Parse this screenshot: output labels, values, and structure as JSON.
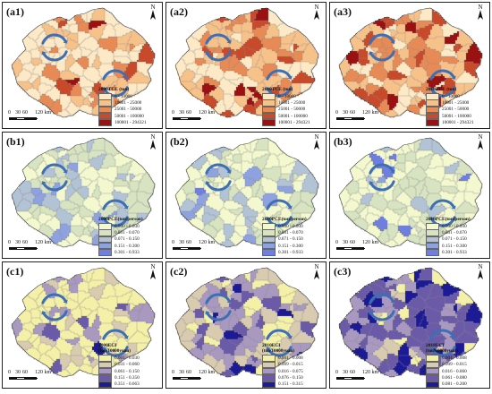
{
  "north_letter": "N",
  "scale": {
    "ticks": [
      "0",
      "30",
      "60",
      "120 km"
    ]
  },
  "panels": [
    {
      "label": "(a1)",
      "row": 0,
      "col": 0,
      "legend": {
        "title": "2000TCE (ton)",
        "subtitle": "",
        "items": [
          "0 - 10000",
          "10001 - 25000",
          "25001 - 50000",
          "50001 - 100000",
          "100001 - 294321"
        ],
        "colors": [
          "#fde9c6",
          "#f7c28a",
          "#e88a55",
          "#c94a2a",
          "#9b1111"
        ]
      },
      "level_weights": [
        0.54,
        0.28,
        0.12,
        0.05,
        0.01
      ]
    },
    {
      "label": "(a2)",
      "row": 0,
      "col": 1,
      "legend": {
        "title": "2010TCE (ton)",
        "subtitle": "",
        "items": [
          "0 - 10000",
          "10001 - 25000",
          "25001 - 50000",
          "50001 - 100000",
          "100001 - 294321"
        ],
        "colors": [
          "#fde9c6",
          "#f7c28a",
          "#e88a55",
          "#c94a2a",
          "#9b1111"
        ]
      },
      "level_weights": [
        0.3,
        0.3,
        0.22,
        0.13,
        0.05
      ]
    },
    {
      "label": "(a3)",
      "row": 0,
      "col": 2,
      "legend": {
        "title": "2018TCE (ton)",
        "subtitle": "",
        "items": [
          "0 - 10000",
          "10001 - 25000",
          "25001 - 50000",
          "50001 - 100000",
          "100001 - 294321"
        ],
        "colors": [
          "#fde9c6",
          "#f7c28a",
          "#e88a55",
          "#c94a2a",
          "#9b1111"
        ]
      },
      "level_weights": [
        0.22,
        0.3,
        0.25,
        0.16,
        0.07
      ]
    },
    {
      "label": "(b1)",
      "row": 1,
      "col": 0,
      "legend": {
        "title": "2000PCE(ton/person)",
        "subtitle": "",
        "items": [
          "0.000 - 0.030",
          "0.031 - 0.070",
          "0.071 - 0.150",
          "0.151 - 0.300",
          "0.301 - 0.933"
        ],
        "colors": [
          "#f4f8cf",
          "#d7e3c1",
          "#b3c3d6",
          "#8ea2e0",
          "#6f7fe0"
        ]
      },
      "level_weights": [
        0.3,
        0.42,
        0.2,
        0.07,
        0.01
      ]
    },
    {
      "label": "(b2)",
      "row": 1,
      "col": 1,
      "legend": {
        "title": "2010PCE(ton/person)",
        "subtitle": "",
        "items": [
          "0.000 - 0.030",
          "0.031 - 0.070",
          "0.071 - 0.150",
          "0.151 - 0.300",
          "0.301 - 0.933"
        ],
        "colors": [
          "#f4f8cf",
          "#d7e3c1",
          "#b3c3d6",
          "#8ea2e0",
          "#6f7fe0"
        ]
      },
      "level_weights": [
        0.48,
        0.32,
        0.13,
        0.06,
        0.01
      ]
    },
    {
      "label": "(b3)",
      "row": 1,
      "col": 2,
      "legend": {
        "title": "2018PCE(ton/person)",
        "subtitle": "",
        "items": [
          "0.000 - 0.030",
          "0.031 - 0.070",
          "0.071 - 0.150",
          "0.151 - 0.300",
          "0.301 - 0.933"
        ],
        "colors": [
          "#f4f8cf",
          "#d7e3c1",
          "#b3c3d6",
          "#8ea2e0",
          "#6f7fe0"
        ]
      },
      "level_weights": [
        0.56,
        0.28,
        0.1,
        0.05,
        0.01
      ]
    },
    {
      "label": "(c1)",
      "row": 2,
      "col": 0,
      "legend": {
        "title": "2000ECI",
        "subtitle": "(ton/10000yuan)",
        "items": [
          "0.001 - 0.030",
          "0.031 - 0.060",
          "0.061 - 0.150",
          "0.151 - 0.350",
          "0.351 - 0.663"
        ],
        "colors": [
          "#f4f0a8",
          "#d8cbb0",
          "#a998bf",
          "#6a5aa8",
          "#1c1a95"
        ]
      },
      "level_weights": [
        0.6,
        0.2,
        0.13,
        0.05,
        0.02
      ]
    },
    {
      "label": "(c2)",
      "row": 2,
      "col": 1,
      "legend": {
        "title": "2010ECI",
        "subtitle": "(ton/10000yuan)",
        "items": [
          "0.001 - 0.008",
          "0.009 - 0.015",
          "0.016 - 0.075",
          "0.076 - 0.150",
          "0.151 - 0.315"
        ],
        "colors": [
          "#f4f0a8",
          "#d8cbb0",
          "#a998bf",
          "#6a5aa8",
          "#1c1a95"
        ]
      },
      "level_weights": [
        0.18,
        0.3,
        0.36,
        0.13,
        0.03
      ]
    },
    {
      "label": "(c3)",
      "row": 2,
      "col": 2,
      "legend": {
        "title": "2018ECI",
        "subtitle": "(ton/10000yuan)",
        "items": [
          "0.001 - 0.008",
          "0.009 - 0.015",
          "0.016 - 0.060",
          "0.061 - 0.080",
          "0.081 - 0.200"
        ],
        "colors": [
          "#f4f0a8",
          "#d8cbb0",
          "#a998bf",
          "#6a5aa8",
          "#1c1a95"
        ]
      },
      "level_weights": [
        0.1,
        0.14,
        0.3,
        0.28,
        0.18
      ]
    }
  ],
  "colors": {
    "hub_arc": "#3d6fb5",
    "border": "#222222",
    "district_line": "#888888"
  }
}
